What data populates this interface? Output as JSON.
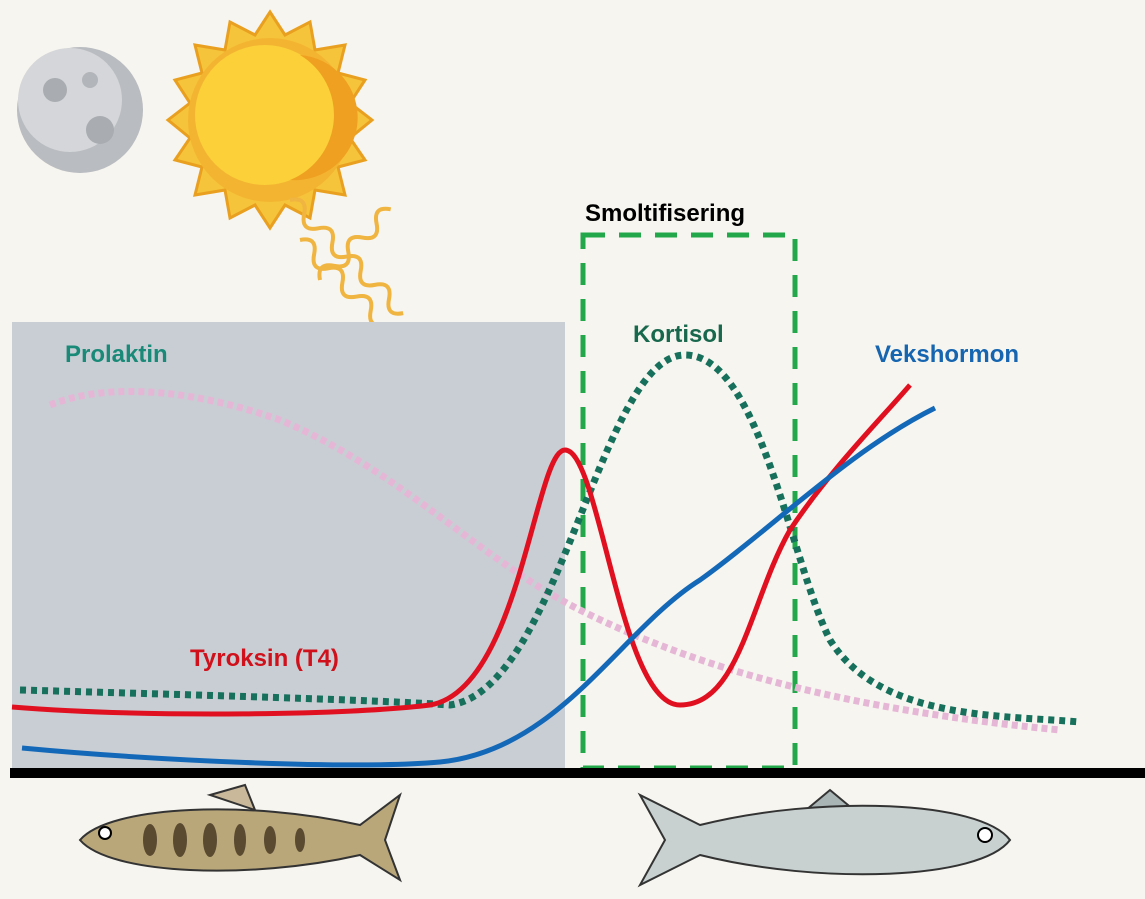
{
  "title": "Smoltifisering",
  "labels": {
    "prolaktin": "Prolaktin",
    "kortisol": "Kortisol",
    "vekshormon": "Vekshormon",
    "tyroksin": "Tyroksin (T4)"
  }
}
